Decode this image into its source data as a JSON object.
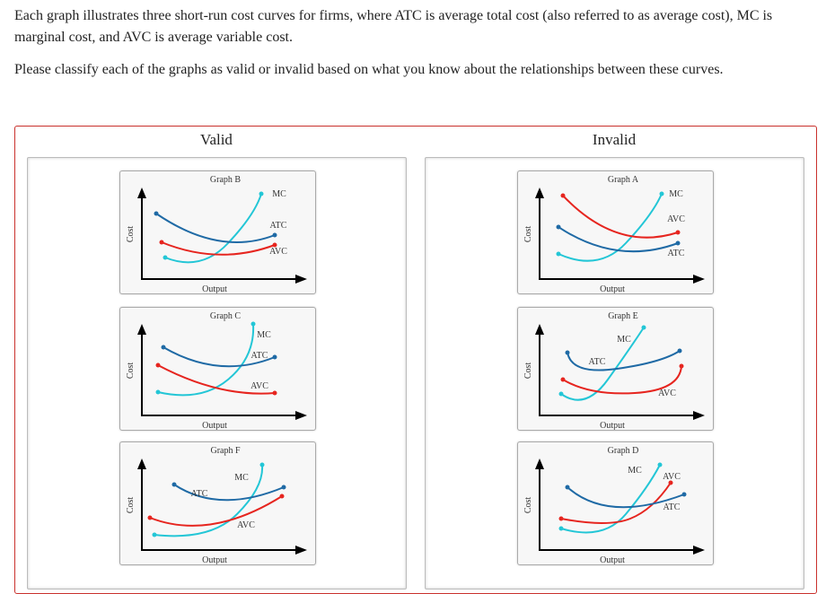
{
  "instructions": [
    "Each graph illustrates three short-run cost curves for firms, where ATC is average total cost (also referred to as average cost), MC is marginal cost, and AVC is average variable cost.",
    "Please classify each of the graphs as valid or invalid based on what you know about the relationships between these curves."
  ],
  "columns": [
    {
      "title": "Valid",
      "cards": [
        {
          "title": "Graph B",
          "x_label": "Output",
          "y_label": "Cost",
          "curves": [
            {
              "label": "MC",
              "color": "#23c6d6"
            },
            {
              "label": "ATC",
              "color": "#1f6aa5"
            },
            {
              "label": "AVC",
              "color": "#e6251f"
            }
          ]
        },
        {
          "title": "Graph C",
          "x_label": "Output",
          "y_label": "Cost",
          "curves": [
            {
              "label": "MC",
              "color": "#23c6d6"
            },
            {
              "label": "ATC",
              "color": "#1f6aa5"
            },
            {
              "label": "AVC",
              "color": "#e6251f"
            }
          ]
        },
        {
          "title": "Graph F",
          "x_label": "Output",
          "y_label": "Cost",
          "curves": [
            {
              "label": "MC",
              "color": "#23c6d6"
            },
            {
              "label": "ATC",
              "color": "#1f6aa5"
            },
            {
              "label": "AVC",
              "color": "#e6251f"
            }
          ]
        }
      ]
    },
    {
      "title": "Invalid",
      "cards": [
        {
          "title": "Graph A",
          "x_label": "Output",
          "y_label": "Cost",
          "curves": [
            {
              "label": "MC",
              "color": "#23c6d6"
            },
            {
              "label": "AVC",
              "color": "#e6251f"
            },
            {
              "label": "ATC",
              "color": "#1f6aa5"
            }
          ]
        },
        {
          "title": "Graph E",
          "x_label": "Output",
          "y_label": "Cost",
          "curves": [
            {
              "label": "MC",
              "color": "#23c6d6"
            },
            {
              "label": "ATC",
              "color": "#1f6aa5"
            },
            {
              "label": "AVC",
              "color": "#e6251f"
            }
          ]
        },
        {
          "title": "Graph D",
          "x_label": "Output",
          "y_label": "Cost",
          "curves": [
            {
              "label": "MC",
              "color": "#23c6d6"
            },
            {
              "label": "AVC",
              "color": "#e6251f"
            },
            {
              "label": "ATC",
              "color": "#1f6aa5"
            }
          ]
        }
      ]
    }
  ]
}
